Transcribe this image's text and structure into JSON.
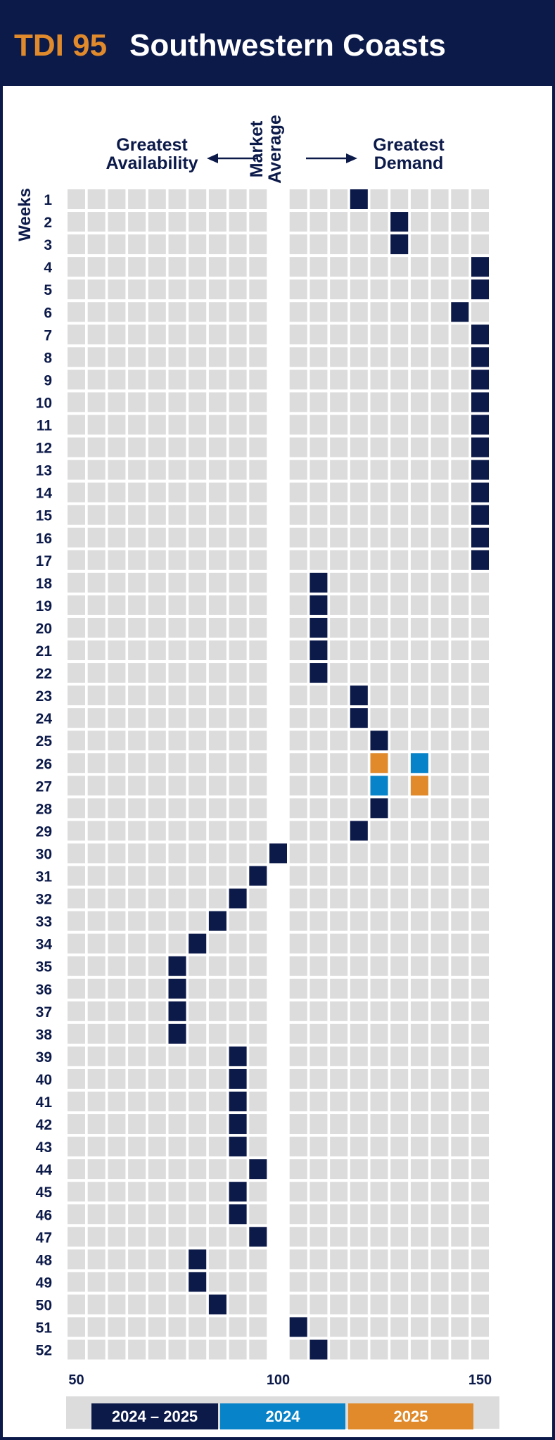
{
  "header": {
    "brand": "TDI 95",
    "title": "Southwestern Coasts"
  },
  "labels": {
    "greatest_availability": "Greatest Availability",
    "market_average": "Market Average",
    "greatest_demand": "Greatest Demand",
    "weeks": "Weeks"
  },
  "colors": {
    "navy": "#0c1a4a",
    "blue": "#0683c9",
    "orange": "#e08a2c",
    "cell": "#dcdcdc"
  },
  "chart_data": {
    "type": "heatmap",
    "title": "Southwestern Coasts",
    "xlabel": "",
    "ylabel": "Weeks",
    "xlim": [
      50,
      150
    ],
    "x_ticks": [
      50,
      100,
      150
    ],
    "x_step": 5,
    "weeks": [
      1,
      2,
      3,
      4,
      5,
      6,
      7,
      8,
      9,
      10,
      11,
      12,
      13,
      14,
      15,
      16,
      17,
      18,
      19,
      20,
      21,
      22,
      23,
      24,
      25,
      26,
      27,
      28,
      29,
      30,
      31,
      32,
      33,
      34,
      35,
      36,
      37,
      38,
      39,
      40,
      41,
      42,
      43,
      44,
      45,
      46,
      47,
      48,
      49,
      50,
      51,
      52
    ],
    "series": [
      {
        "name": "2024 – 2025",
        "color": "#0c1a4a",
        "values": [
          120,
          130,
          130,
          150,
          150,
          145,
          150,
          150,
          150,
          150,
          150,
          150,
          150,
          150,
          150,
          150,
          150,
          110,
          110,
          110,
          110,
          110,
          120,
          120,
          125,
          null,
          null,
          125,
          120,
          100,
          95,
          90,
          85,
          80,
          75,
          75,
          75,
          75,
          90,
          90,
          90,
          90,
          90,
          95,
          90,
          90,
          95,
          80,
          80,
          85,
          105,
          110
        ]
      },
      {
        "name": "2024",
        "color": "#0683c9",
        "values": [
          null,
          null,
          null,
          null,
          null,
          null,
          null,
          null,
          null,
          null,
          null,
          null,
          null,
          null,
          null,
          null,
          null,
          null,
          null,
          null,
          null,
          null,
          null,
          null,
          null,
          135,
          125,
          null,
          null,
          null,
          null,
          null,
          null,
          null,
          null,
          null,
          null,
          null,
          null,
          null,
          null,
          null,
          null,
          null,
          null,
          null,
          null,
          null,
          null,
          null,
          null,
          null
        ]
      },
      {
        "name": "2025",
        "color": "#e08a2c",
        "values": [
          null,
          null,
          null,
          null,
          null,
          null,
          null,
          null,
          null,
          null,
          null,
          null,
          null,
          null,
          null,
          null,
          null,
          null,
          null,
          null,
          null,
          null,
          null,
          null,
          null,
          125,
          135,
          null,
          null,
          null,
          null,
          null,
          null,
          null,
          null,
          null,
          null,
          null,
          null,
          null,
          null,
          null,
          null,
          null,
          null,
          null,
          null,
          null,
          null,
          null,
          null,
          null
        ]
      }
    ],
    "legend": [
      "2024 – 2025",
      "2024",
      "2025"
    ],
    "legend_position": "bottom",
    "grid": true
  }
}
